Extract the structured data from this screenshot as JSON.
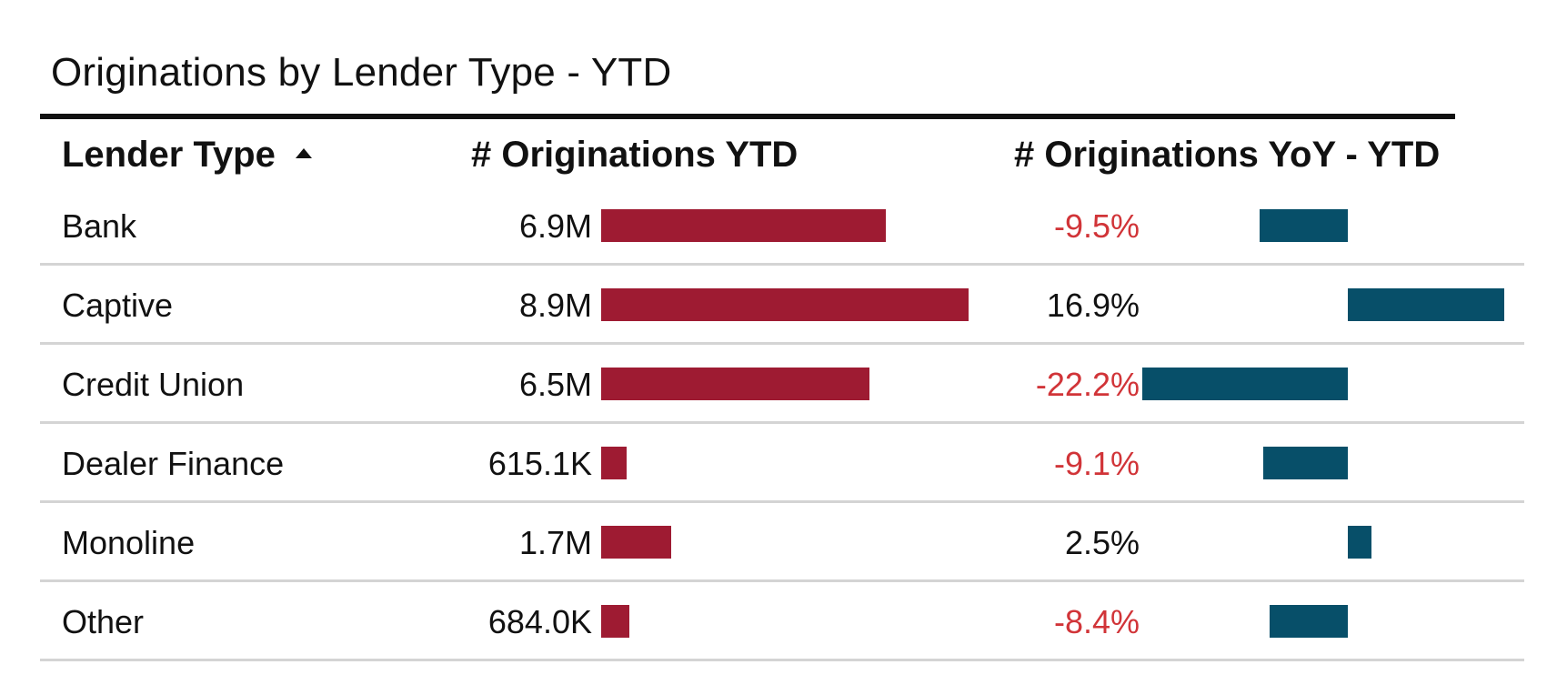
{
  "title": "Originations by Lender Type - YTD",
  "columns": {
    "lender_type": "Lender Type",
    "originations": "# Originations YTD",
    "yoy": "# Originations YoY - YTD"
  },
  "colors": {
    "originations_bar": "#9e1b32",
    "yoy_bar": "#074f69",
    "negative_text": "#d13438",
    "positive_text": "#111111"
  },
  "chart_data": {
    "type": "table",
    "sort": {
      "column": "Lender Type",
      "direction": "ascending"
    },
    "rows": [
      {
        "lender_type": "Bank",
        "originations": 6900000.0,
        "originations_label": "6.9M",
        "yoy": -9.5,
        "yoy_label": "-9.5%"
      },
      {
        "lender_type": "Captive",
        "originations": 8900000.0,
        "originations_label": "8.9M",
        "yoy": 16.9,
        "yoy_label": "16.9%"
      },
      {
        "lender_type": "Credit Union",
        "originations": 6500000.0,
        "originations_label": "6.5M",
        "yoy": -22.2,
        "yoy_label": "-22.2%"
      },
      {
        "lender_type": "Dealer Finance",
        "originations": 615100,
        "originations_label": "615.1K",
        "yoy": -9.1,
        "yoy_label": "-9.1%"
      },
      {
        "lender_type": "Monoline",
        "originations": 1700000.0,
        "originations_label": "1.7M",
        "yoy": 2.5,
        "yoy_label": "2.5%"
      },
      {
        "lender_type": "Other",
        "originations": 684000,
        "originations_label": "684.0K",
        "yoy": -8.4,
        "yoy_label": "-8.4%"
      }
    ]
  }
}
